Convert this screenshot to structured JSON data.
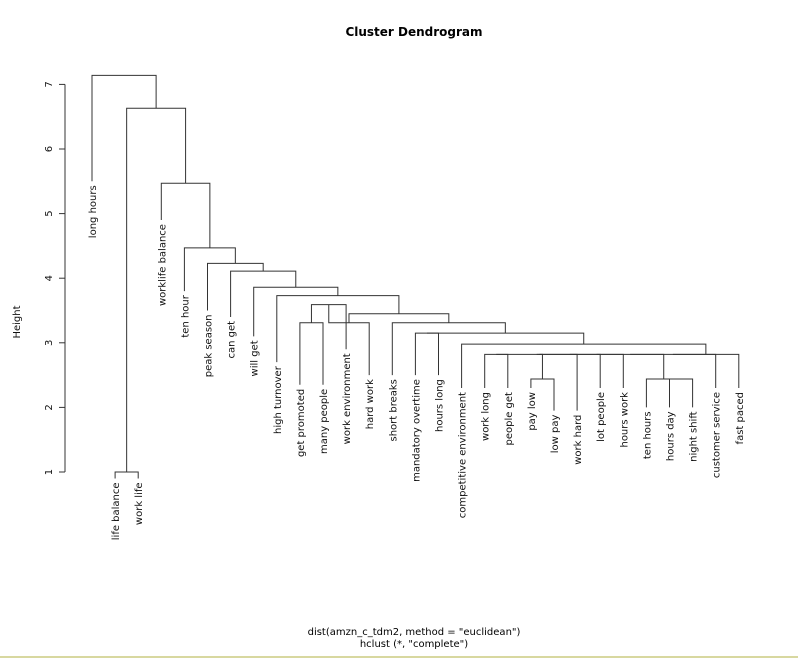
{
  "chart_data": {
    "type": "dendrogram",
    "title": "Cluster Dendrogram",
    "ylabel": "Height",
    "subtitle_line1": "dist(amzn_c_tdm2, method = \"euclidean\")",
    "subtitle_line2": "hclust (*, \"complete\")",
    "ylim": [
      0.6,
      7.3
    ],
    "yticks": [
      1,
      2,
      3,
      4,
      5,
      6,
      7
    ],
    "leaves": [
      "long hours",
      "life balance",
      "work life",
      "worklife balance",
      "ten hour",
      "peak season",
      "can get",
      "will get",
      "high turnover",
      "get promoted",
      "many people",
      "work environment",
      "hard work",
      "short breaks",
      "mandatory overtime",
      "hours long",
      "competitive environment",
      "work long",
      "people get",
      "pay low",
      "low pay",
      "work hard",
      "lot people",
      "hours work",
      "ten hours",
      "hours day",
      "night shift",
      "customer service",
      "fast paced"
    ],
    "leaf_heights": [
      5.5,
      0.9,
      0.9,
      4.9,
      3.8,
      3.5,
      3.4,
      3.1,
      2.7,
      2.35,
      2.35,
      2.9,
      2.5,
      2.5,
      2.5,
      2.5,
      2.3,
      2.3,
      2.3,
      2.3,
      1.95,
      1.95,
      2.3,
      2.3,
      2.0,
      2.0,
      2.0,
      2.3,
      2.3
    ],
    "merges": [
      {
        "a": "L1",
        "b": "L2",
        "h": 1.0
      },
      {
        "a": "L19",
        "b": "L20",
        "h": 2.44
      },
      {
        "a": "L25",
        "b": "L26",
        "h": 2.44
      },
      {
        "a": "L24",
        "b": "M2",
        "h": 2.44
      },
      {
        "a": "L9",
        "b": "L10",
        "h": 3.31
      },
      {
        "a": "L11",
        "b": "M4",
        "h": 3.59
      },
      {
        "a": "L12",
        "b": "M5",
        "h": 3.31
      },
      {
        "a": "L17",
        "b": "L18",
        "h": 2.82
      },
      {
        "a": "M7",
        "b": "L21",
        "h": 2.82
      },
      {
        "a": "M1",
        "b": "M8",
        "h": 2.82
      },
      {
        "a": "M9",
        "b": "L22",
        "h": 2.82
      },
      {
        "a": "M10",
        "b": "L23",
        "h": 2.82
      },
      {
        "a": "M11",
        "b": "M3",
        "h": 2.82
      },
      {
        "a": "M12",
        "b": "L27",
        "h": 2.82
      },
      {
        "a": "M13",
        "b": "L28",
        "h": 2.82
      },
      {
        "a": "L16",
        "b": "M14",
        "h": 2.98
      },
      {
        "a": "L14",
        "b": "L15",
        "h": 3.15
      },
      {
        "a": "M16",
        "b": "M15",
        "h": 3.15
      },
      {
        "a": "L13",
        "b": "M17",
        "h": 3.31
      },
      {
        "a": "M6",
        "b": "M18",
        "h": 3.45
      },
      {
        "a": "L8",
        "b": "M19",
        "h": 3.73
      },
      {
        "a": "L7",
        "b": "M20",
        "h": 3.86
      },
      {
        "a": "L6",
        "b": "M21",
        "h": 4.11
      },
      {
        "a": "L5",
        "b": "M22",
        "h": 4.23
      },
      {
        "a": "L4",
        "b": "M23",
        "h": 4.47
      },
      {
        "a": "L3",
        "b": "M24",
        "h": 5.47
      },
      {
        "a": "M0",
        "b": "M25",
        "h": 6.63
      },
      {
        "a": "L0",
        "b": "M26",
        "h": 7.14
      }
    ]
  }
}
